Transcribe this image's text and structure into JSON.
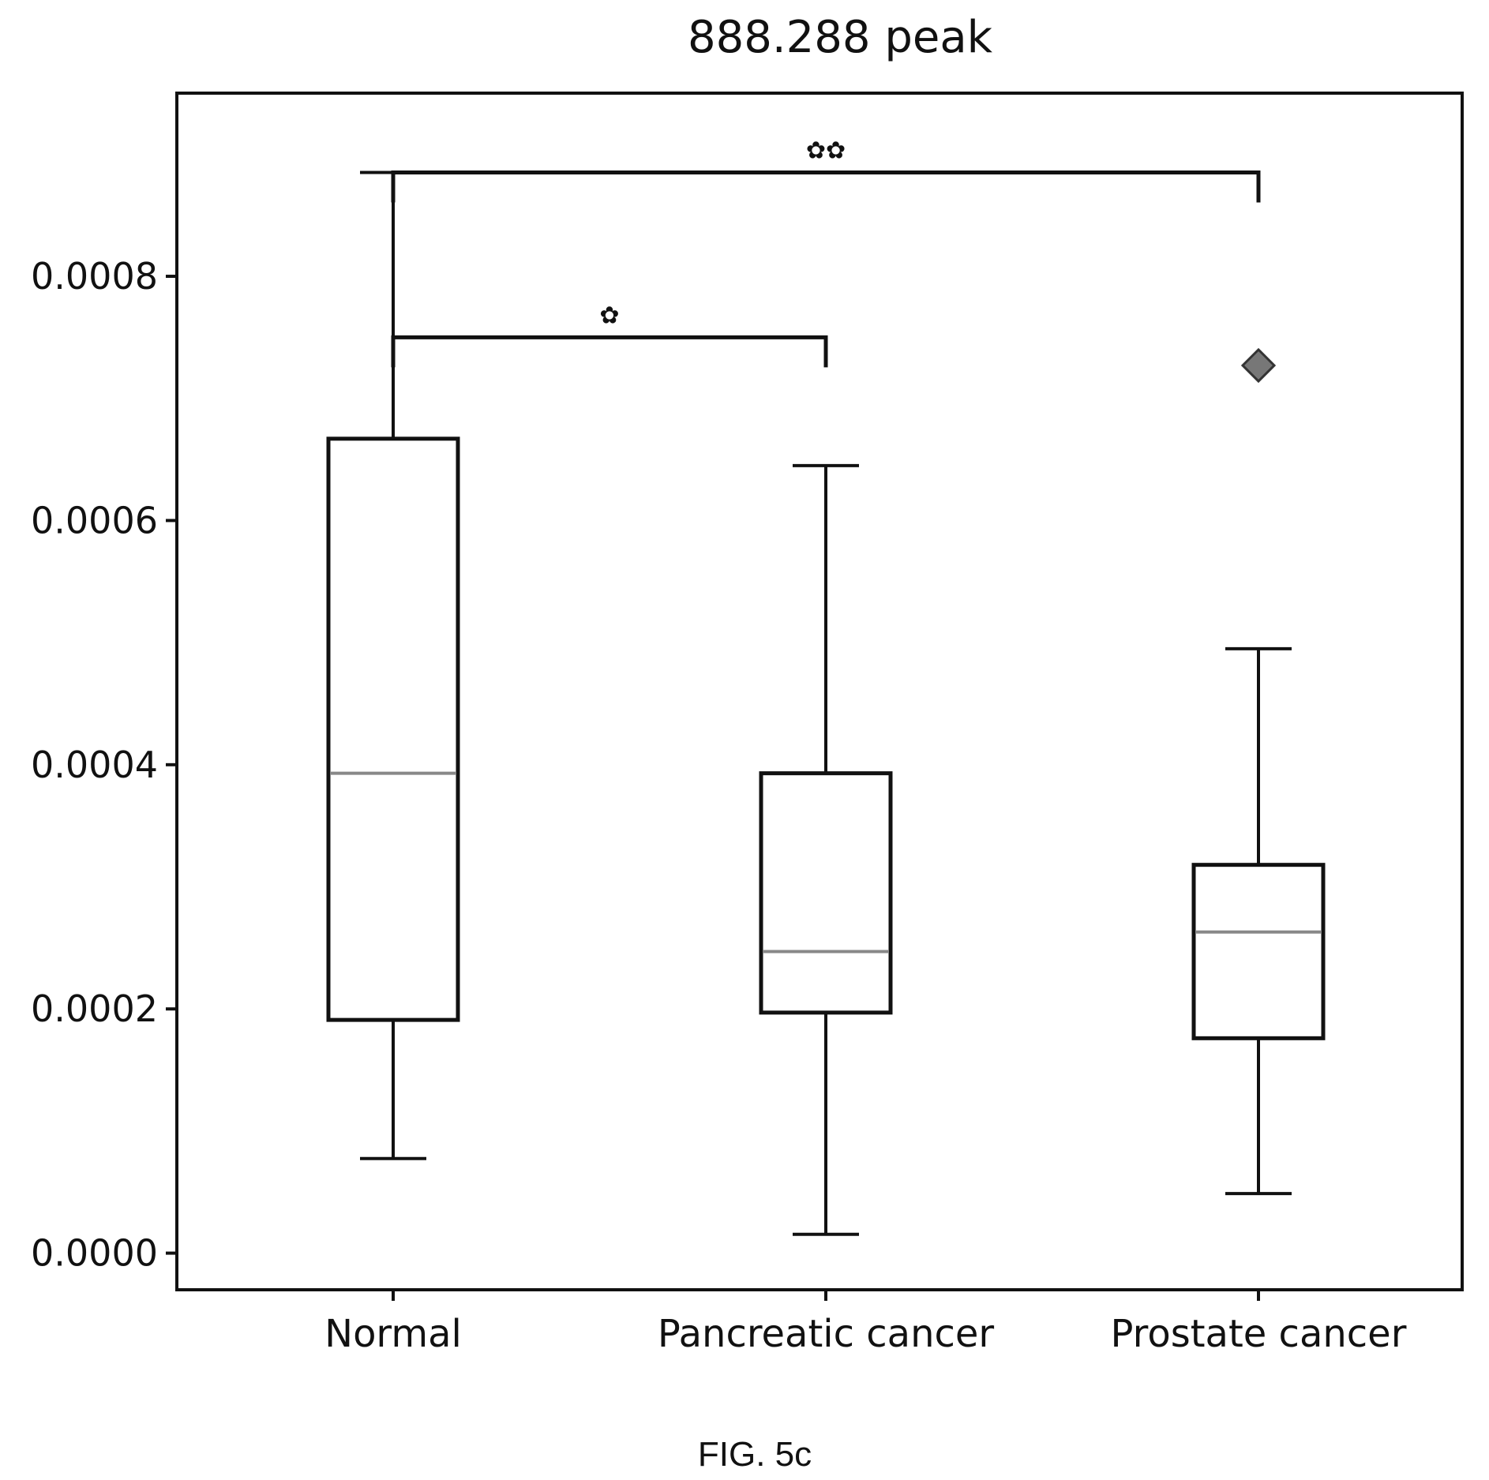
{
  "chart_data": {
    "type": "box",
    "title": "888.288 peak",
    "xlabel": "",
    "ylabel": "",
    "ylim": [
      -3e-05,
      0.00095
    ],
    "y_ticks": [
      0.0,
      0.0002,
      0.0004,
      0.0006,
      0.0008
    ],
    "y_tick_labels": [
      "0.0000",
      "0.0002",
      "0.0004",
      "0.0006",
      "0.0008"
    ],
    "categories": [
      "Normal",
      "Pancreatic cancer",
      "Prostate cancer"
    ],
    "boxes": [
      {
        "whisker_low": 7.75e-05,
        "q1": 0.000191,
        "median": 0.000393,
        "q3": 0.000667,
        "whisker_high": 0.000885,
        "outliers": []
      },
      {
        "whisker_low": 1.54e-05,
        "q1": 0.000197,
        "median": 0.000247,
        "q3": 0.000393,
        "whisker_high": 0.000645,
        "outliers": []
      },
      {
        "whisker_low": 4.88e-05,
        "q1": 0.000176,
        "median": 0.000263,
        "q3": 0.000318,
        "whisker_high": 0.000495,
        "outliers": [
          0.000727
        ]
      }
    ],
    "significance": [
      {
        "from": "Normal",
        "to": "Prostate cancer",
        "label": "✿✿",
        "y": 0.000885
      },
      {
        "from": "Normal",
        "to": "Pancreatic cancer",
        "label": "✿",
        "y": 0.00075
      }
    ],
    "grid": false,
    "legend": "none",
    "colors": {
      "box": "#111111",
      "median": "#888888",
      "outlier": "#777777"
    }
  },
  "figure": {
    "caption": "FIG. 5c"
  }
}
